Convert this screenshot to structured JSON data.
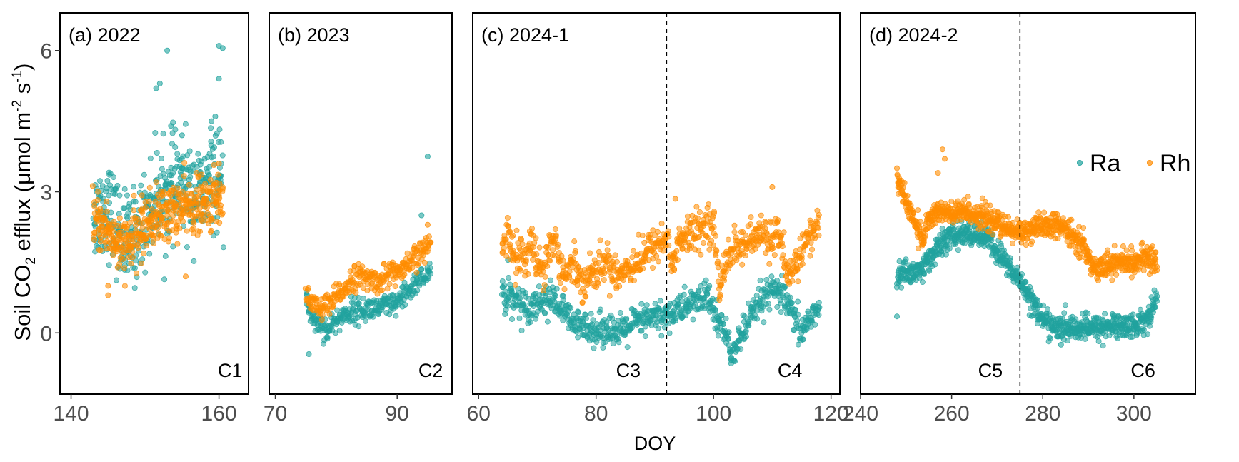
{
  "colors": {
    "Ra": "#20a39e",
    "Rh": "#ff8c00"
  },
  "chart_data": {
    "type": "scatter",
    "ylabel_parts": [
      "Soil CO",
      "2",
      " efflux (μmol m",
      "-2",
      " s",
      "-1",
      ")"
    ],
    "xlabel": "DOY",
    "ylim": [
      -1.3,
      6.8
    ],
    "yticks": [
      0,
      3,
      6
    ],
    "legend": {
      "position": "top-right of panel (d)",
      "entries": [
        "Ra",
        "Rh"
      ]
    },
    "panels": [
      {
        "title": "(a) 2022",
        "xlim": [
          138.5,
          164
        ],
        "xticks": [
          140,
          160
        ],
        "labels": [
          {
            "text": "C1",
            "x": 161.5
          }
        ],
        "vlines": [],
        "Ra": {
          "x_range": [
            143,
            160.5
          ],
          "knots": [
            [
              143,
              2.5
            ],
            [
              145,
              2.7
            ],
            [
              146.5,
              2.1
            ],
            [
              148,
              1.9
            ],
            [
              149.5,
              2.3
            ],
            [
              151,
              2.7
            ],
            [
              152,
              3.0
            ],
            [
              153,
              2.8
            ],
            [
              154,
              3.2
            ],
            [
              156,
              3.0
            ],
            [
              158,
              2.9
            ],
            [
              159,
              3.3
            ],
            [
              160.5,
              3.1
            ]
          ],
          "noise": 0.5,
          "n": 420,
          "outliers": [
            [
              153,
              6.0
            ],
            [
              160,
              6.1
            ],
            [
              160.5,
              6.05
            ],
            [
              152,
              5.3
            ],
            [
              151.5,
              5.2
            ],
            [
              160,
              5.4
            ],
            [
              159.5,
              4.6
            ],
            [
              153.5,
              4.4
            ],
            [
              159,
              4.5
            ],
            [
              155,
              4.2
            ]
          ]
        },
        "Rh": {
          "x_range": [
            143,
            160.5
          ],
          "knots": [
            [
              143,
              2.4
            ],
            [
              145,
              2.2
            ],
            [
              146.5,
              1.8
            ],
            [
              148,
              1.9
            ],
            [
              150,
              2.3
            ],
            [
              152,
              2.5
            ],
            [
              154,
              2.6
            ],
            [
              156,
              2.7
            ],
            [
              158,
              2.7
            ],
            [
              160.5,
              2.9
            ]
          ],
          "noise": 0.3,
          "n": 420,
          "outliers": [
            [
              145,
              0.8
            ],
            [
              145,
              1.0
            ],
            [
              155.5,
              1.2
            ],
            [
              160,
              3.6
            ]
          ]
        }
      },
      {
        "title": "(b) 2023",
        "xlim": [
          69,
          99
        ],
        "xticks": [
          70,
          90
        ],
        "labels": [
          {
            "text": "C2",
            "x": 95.5
          }
        ],
        "vlines": [],
        "Ra": {
          "x_range": [
            75,
            95.5
          ],
          "knots": [
            [
              75,
              0.8
            ],
            [
              76,
              0.3
            ],
            [
              77.5,
              0.2
            ],
            [
              78.5,
              0.05
            ],
            [
              80,
              0.25
            ],
            [
              82,
              0.45
            ],
            [
              85,
              0.5
            ],
            [
              88,
              0.55
            ],
            [
              90,
              0.6
            ],
            [
              92,
              0.9
            ],
            [
              94,
              1.2
            ],
            [
              95.5,
              1.2
            ]
          ],
          "noise": 0.13,
          "n": 280,
          "outliers": [
            [
              75.5,
              -0.45
            ],
            [
              95,
              3.75
            ],
            [
              94,
              2.5
            ]
          ]
        },
        "Rh": {
          "x_range": [
            75,
            95.5
          ],
          "knots": [
            [
              75,
              1.0
            ],
            [
              76,
              0.6
            ],
            [
              77.5,
              0.5
            ],
            [
              79,
              0.6
            ],
            [
              81,
              0.9
            ],
            [
              83,
              1.2
            ],
            [
              85,
              1.15
            ],
            [
              87,
              1.1
            ],
            [
              89,
              1.3
            ],
            [
              91,
              1.3
            ],
            [
              93,
              1.6
            ],
            [
              95.5,
              1.9
            ]
          ],
          "noise": 0.13,
          "n": 280,
          "outliers": [
            [
              95,
              2.3
            ]
          ]
        }
      },
      {
        "title": "(c) 2024-1",
        "xlim": [
          59,
          121.5
        ],
        "xticks": [
          60,
          80,
          100,
          120
        ],
        "labels": [
          {
            "text": "C3",
            "x": 85.5
          },
          {
            "text": "C4",
            "x": 113
          }
        ],
        "vlines": [
          92
        ],
        "Ra": {
          "x_range": [
            64,
            118
          ],
          "knots": [
            [
              64,
              0.9
            ],
            [
              66,
              0.75
            ],
            [
              68,
              0.55
            ],
            [
              70,
              0.65
            ],
            [
              72,
              0.75
            ],
            [
              74,
              0.55
            ],
            [
              75,
              0.35
            ],
            [
              77,
              0.1
            ],
            [
              79,
              0.2
            ],
            [
              80,
              0.0
            ],
            [
              82,
              0.15
            ],
            [
              84,
              -0.05
            ],
            [
              86,
              0.2
            ],
            [
              88,
              0.25
            ],
            [
              90,
              0.35
            ],
            [
              92,
              0.35
            ],
            [
              94,
              0.5
            ],
            [
              96,
              0.6
            ],
            [
              98,
              0.75
            ],
            [
              99,
              0.8
            ],
            [
              100,
              0.4
            ],
            [
              102,
              0.0
            ],
            [
              103,
              -0.45
            ],
            [
              105,
              0.0
            ],
            [
              107,
              0.45
            ],
            [
              108,
              0.7
            ],
            [
              110,
              0.85
            ],
            [
              111,
              0.9
            ],
            [
              112,
              0.7
            ],
            [
              113,
              0.5
            ],
            [
              114,
              0.2
            ],
            [
              115,
              0.0
            ],
            [
              116,
              0.25
            ],
            [
              117,
              0.45
            ],
            [
              118,
              0.5
            ]
          ],
          "noise": 0.17,
          "n": 750,
          "outliers": [
            [
              65,
              1.55
            ],
            [
              64.5,
              0.4
            ],
            [
              103,
              -0.65
            ],
            [
              100.5,
              0.7
            ]
          ]
        },
        "Rh": {
          "x_range": [
            64,
            118
          ],
          "knots": [
            [
              64,
              1.7
            ],
            [
              65,
              2.1
            ],
            [
              66,
              1.7
            ],
            [
              68,
              1.6
            ],
            [
              69,
              1.9
            ],
            [
              70,
              1.5
            ],
            [
              71,
              1.4
            ],
            [
              72,
              1.8
            ],
            [
              73,
              2.0
            ],
            [
              74,
              1.4
            ],
            [
              75,
              1.2
            ],
            [
              76,
              1.5
            ],
            [
              78,
              1.1
            ],
            [
              80,
              1.35
            ],
            [
              82,
              1.5
            ],
            [
              84,
              1.25
            ],
            [
              86,
              1.45
            ],
            [
              88,
              1.6
            ],
            [
              90,
              1.9
            ],
            [
              92,
              2.0
            ],
            [
              93,
              1.5
            ],
            [
              94,
              1.9
            ],
            [
              96,
              2.1
            ],
            [
              98,
              2.2
            ],
            [
              99,
              2.4
            ],
            [
              100,
              2.3
            ],
            [
              101,
              0.9
            ],
            [
              102,
              1.6
            ],
            [
              104,
              1.85
            ],
            [
              106,
              1.9
            ],
            [
              108,
              2.1
            ],
            [
              110,
              2.0
            ],
            [
              111,
              2.2
            ],
            [
              112,
              1.4
            ],
            [
              113,
              1.1
            ],
            [
              114,
              1.5
            ],
            [
              116,
              2.0
            ],
            [
              118,
              2.3
            ]
          ],
          "noise": 0.2,
          "n": 750,
          "outliers": [
            [
              110,
              3.1
            ],
            [
              93.5,
              2.85
            ],
            [
              101,
              0.7
            ]
          ]
        }
      },
      {
        "title": "(d) 2024-2",
        "xlim": [
          240,
          313.5
        ],
        "xticks": [
          240,
          260,
          280,
          300
        ],
        "labels": [
          {
            "text": "C5",
            "x": 268.5
          },
          {
            "text": "C6",
            "x": 302
          }
        ],
        "vlines": [
          275
        ],
        "Ra": {
          "x_range": [
            248,
            305
          ],
          "knots": [
            [
              248,
              1.2
            ],
            [
              250,
              1.3
            ],
            [
              253,
              1.3
            ],
            [
              256,
              1.7
            ],
            [
              259,
              2.0
            ],
            [
              262,
              2.1
            ],
            [
              265,
              2.1
            ],
            [
              268,
              2.0
            ],
            [
              270,
              1.7
            ],
            [
              272,
              1.5
            ],
            [
              274,
              1.2
            ],
            [
              276,
              1.0
            ],
            [
              278,
              0.6
            ],
            [
              280,
              0.3
            ],
            [
              283,
              0.1
            ],
            [
              286,
              0.1
            ],
            [
              290,
              0.1
            ],
            [
              295,
              0.15
            ],
            [
              300,
              0.15
            ],
            [
              303,
              0.3
            ],
            [
              305,
              0.75
            ]
          ],
          "noise": 0.13,
          "n": 850,
          "outliers": [
            [
              248,
              0.35
            ],
            [
              284,
              -0.25
            ]
          ]
        },
        "Rh": {
          "x_range": [
            248,
            305
          ],
          "knots": [
            [
              248,
              3.3
            ],
            [
              249,
              3.0
            ],
            [
              251,
              2.6
            ],
            [
              252.5,
              2.2
            ],
            [
              253.5,
              2.0
            ],
            [
              255,
              2.4
            ],
            [
              257,
              2.6
            ],
            [
              260,
              2.5
            ],
            [
              263,
              2.6
            ],
            [
              266,
              2.5
            ],
            [
              269,
              2.4
            ],
            [
              272,
              2.2
            ],
            [
              275,
              2.15
            ],
            [
              278,
              2.2
            ],
            [
              282,
              2.3
            ],
            [
              285,
              2.2
            ],
            [
              287,
              2.0
            ],
            [
              289,
              1.9
            ],
            [
              290,
              1.5
            ],
            [
              292,
              1.4
            ],
            [
              296,
              1.5
            ],
            [
              300,
              1.5
            ],
            [
              303,
              1.6
            ],
            [
              305,
              1.5
            ]
          ],
          "noise": 0.13,
          "n": 850,
          "outliers": [
            [
              258,
              3.9
            ],
            [
              258.5,
              3.7
            ],
            [
              257,
              3.4
            ],
            [
              248,
              3.5
            ]
          ]
        }
      }
    ]
  }
}
